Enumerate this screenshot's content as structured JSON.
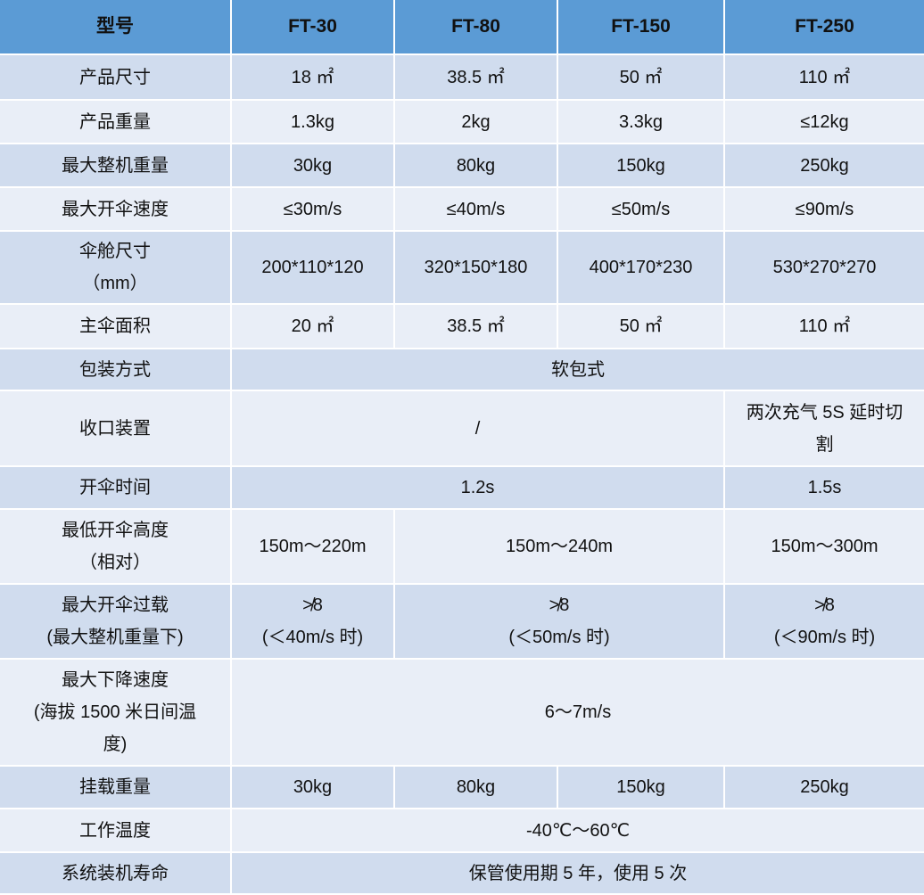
{
  "colors": {
    "header": "#5b9bd5",
    "row_dark": "#d0dcee",
    "row_light": "#e9eef7"
  },
  "header": [
    "型号",
    "FT-30",
    "FT-80",
    "FT-150",
    "FT-250"
  ],
  "rows": [
    {
      "cells": [
        {
          "t": "产品尺寸"
        },
        {
          "t": "18 ㎡"
        },
        {
          "t": "38.5 ㎡"
        },
        {
          "t": "50 ㎡"
        },
        {
          "t": "110 ㎡"
        }
      ]
    },
    {
      "cells": [
        {
          "t": "产品重量"
        },
        {
          "t": "1.3kg"
        },
        {
          "t": "2kg"
        },
        {
          "t": "3.3kg"
        },
        {
          "t": "≤12kg"
        }
      ]
    },
    {
      "cells": [
        {
          "t": "最大整机重量"
        },
        {
          "t": "30kg"
        },
        {
          "t": "80kg"
        },
        {
          "t": "150kg"
        },
        {
          "t": "250kg"
        }
      ]
    },
    {
      "cells": [
        {
          "t": "最大开伞速度"
        },
        {
          "t": "≤30m/s"
        },
        {
          "t": "≤40m/s"
        },
        {
          "t": "≤50m/s"
        },
        {
          "t": "≤90m/s"
        }
      ]
    },
    {
      "cells": [
        {
          "t": "伞舱尺寸\n（mm）"
        },
        {
          "t": "200*110*120"
        },
        {
          "t": "320*150*180"
        },
        {
          "t": "400*170*230"
        },
        {
          "t": "530*270*270"
        }
      ]
    },
    {
      "cells": [
        {
          "t": "主伞面积"
        },
        {
          "t": "20 ㎡"
        },
        {
          "t": "38.5 ㎡"
        },
        {
          "t": "50 ㎡"
        },
        {
          "t": "110 ㎡"
        }
      ]
    },
    {
      "cells": [
        {
          "t": "包装方式"
        },
        {
          "t": "软包式",
          "span": 4
        }
      ]
    },
    {
      "cells": [
        {
          "t": "收口装置"
        },
        {
          "t": "/",
          "span": 3
        },
        {
          "t": "两次充气 5S 延时切\n割"
        }
      ]
    },
    {
      "cells": [
        {
          "t": "开伞时间"
        },
        {
          "t": "1.2s",
          "span": 3
        },
        {
          "t": "1.5s"
        }
      ]
    },
    {
      "cells": [
        {
          "t": "最低开伞高度\n（相对）"
        },
        {
          "t": "150m～220m"
        },
        {
          "t": "150m～240m",
          "span": 2
        },
        {
          "t": "150m～300m"
        }
      ]
    },
    {
      "cells": [
        {
          "t": "最大开伞过载\n(最大整机重量下)"
        },
        {
          "t": "≯8\n(＜40m/s 时)"
        },
        {
          "t": "≯8\n(＜50m/s 时)",
          "span": 2
        },
        {
          "t": "≯8\n(＜90m/s 时)"
        }
      ]
    },
    {
      "cells": [
        {
          "t": "最大下降速度\n(海拔 1500 米日间温\n度)"
        },
        {
          "t": "6～7m/s",
          "span": 4
        }
      ]
    },
    {
      "cells": [
        {
          "t": "挂载重量"
        },
        {
          "t": "30kg"
        },
        {
          "t": "80kg"
        },
        {
          "t": "150kg"
        },
        {
          "t": "250kg"
        }
      ]
    },
    {
      "cells": [
        {
          "t": "工作温度"
        },
        {
          "t": "-40℃～60℃",
          "span": 4
        }
      ]
    },
    {
      "cells": [
        {
          "t": "系统装机寿命"
        },
        {
          "t": "保管使用期 5 年，使用 5 次",
          "span": 4
        }
      ]
    }
  ]
}
